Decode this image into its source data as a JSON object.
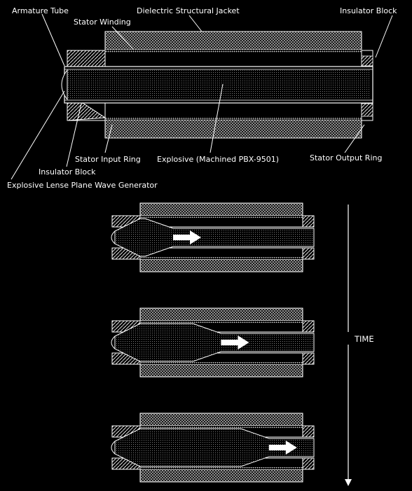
{
  "top_diagram": {
    "labels": {
      "armature_tube": "Armature Tube",
      "dielectric_jacket": "Dielectric Structural Jacket",
      "insulator_block_right": "Insulator Block",
      "stator_winding": "Stator Winding",
      "stator_input_ring": "Stator Input Ring",
      "explosive": "Explosive (Machined PBX-9501)",
      "stator_output_ring": "Stator Output Ring",
      "insulator_block_left": "Insulator Block",
      "lens_generator": "Explosive Lense Plane Wave Generator"
    }
  },
  "time_sequence": {
    "axis_label": "TIME",
    "stages": [
      {
        "id": "stage-1",
        "progress": 0.25
      },
      {
        "id": "stage-2",
        "progress": 0.55
      },
      {
        "id": "stage-3",
        "progress": 0.85
      }
    ]
  },
  "colors": {
    "background": "#000000",
    "line": "#ffffff",
    "arrow_fill": "#ffffff"
  }
}
